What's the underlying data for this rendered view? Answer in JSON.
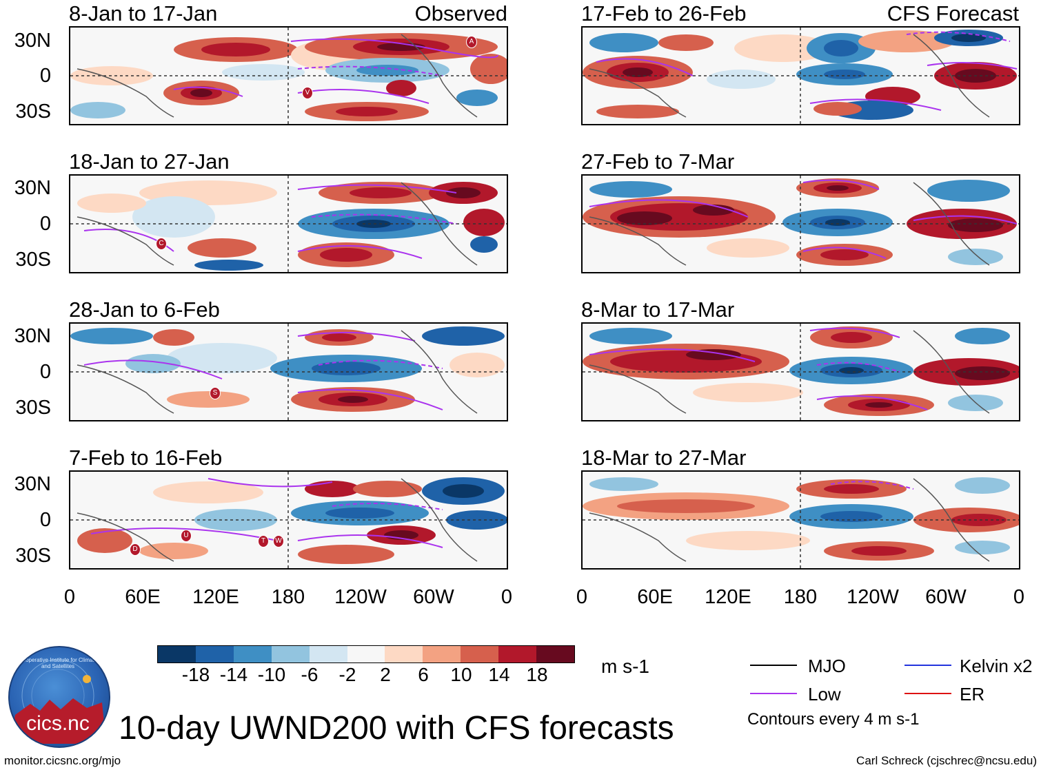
{
  "header": {
    "observed_label": "Observed",
    "forecast_label": "CFS Forecast"
  },
  "panels": {
    "left": [
      {
        "title": "8-Jan to 17-Jan"
      },
      {
        "title": "18-Jan to 27-Jan"
      },
      {
        "title": "28-Jan to 6-Feb"
      },
      {
        "title": "7-Feb to 16-Feb"
      }
    ],
    "right": [
      {
        "title": "17-Feb to 26-Feb"
      },
      {
        "title": "27-Feb to 7-Mar"
      },
      {
        "title": "8-Mar to 17-Mar"
      },
      {
        "title": "18-Mar to 27-Mar"
      }
    ]
  },
  "axes": {
    "y_ticks": [
      "30N",
      "0",
      "30S"
    ],
    "x_ticks": [
      "0",
      "60E",
      "120E",
      "180",
      "120W",
      "60W",
      "0"
    ]
  },
  "storm_markers": {
    "p0": [
      "A",
      "V"
    ],
    "p1": [
      "C"
    ],
    "p2": [
      "S"
    ],
    "p3": [
      "D",
      "U",
      "T",
      "W"
    ]
  },
  "colorbar": {
    "tick_labels": [
      "-18",
      "-14",
      "-10",
      "-6",
      "-2",
      "2",
      "6",
      "10",
      "14",
      "18"
    ],
    "colors": [
      "#0a3766",
      "#1f62a8",
      "#3f8fc4",
      "#92c4df",
      "#d3e6f2",
      "#f7f7f7",
      "#fdd9c4",
      "#f3a282",
      "#d6604d",
      "#b2182b",
      "#670a1f"
    ],
    "units": "m s-1"
  },
  "legend": {
    "items": [
      {
        "label": "MJO",
        "color": "#000000"
      },
      {
        "label": "Kelvin x2",
        "color": "#2233dd"
      },
      {
        "label": "Low",
        "color": "#aa33ee"
      },
      {
        "label": "ER",
        "color": "#dd1111"
      }
    ],
    "contour_note": "Contours every 4 m s-1"
  },
  "footer": {
    "main_title": "10-day UWND200 with CFS forecasts",
    "url": "monitor.cicsnc.org/mjo",
    "credit": "Carl Schreck (cjschrec@ncsu.edu)",
    "logo_text": "cics.nc",
    "logo_ring_text": "Cooperative Institute for Climate and Satellites"
  }
}
